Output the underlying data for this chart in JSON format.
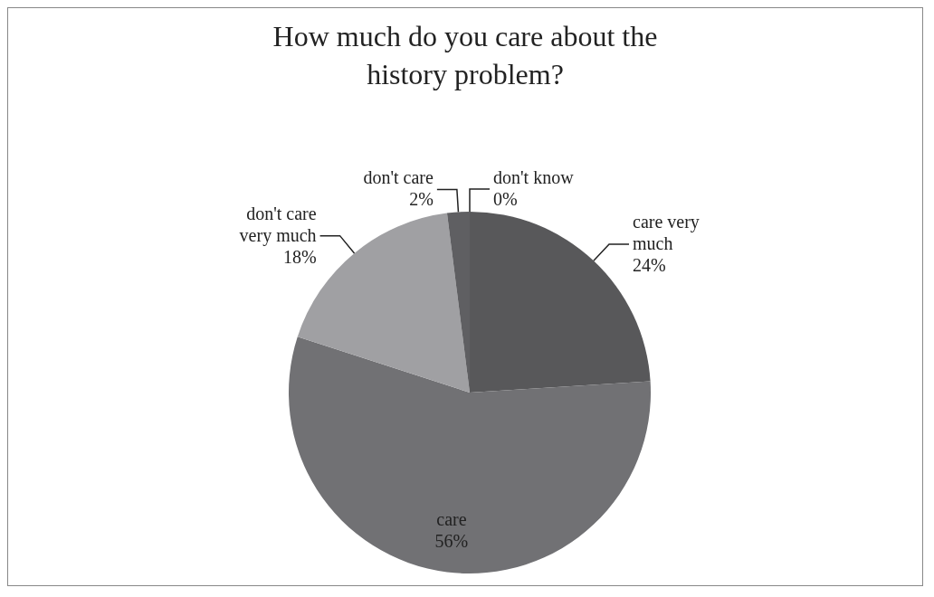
{
  "chart_data": {
    "type": "pie",
    "title": "How much do you care about the history problem?",
    "categories": [
      "care very much",
      "care",
      "don't care very much",
      "don't care",
      "don't know"
    ],
    "values": [
      24,
      56,
      18,
      2,
      0
    ],
    "value_labels": [
      "24%",
      "56%",
      "18%",
      "2%",
      "0%"
    ],
    "colors": [
      "#58585a",
      "#717174",
      "#a0a0a3",
      "#5f5f62",
      "#bdbdbd"
    ]
  }
}
